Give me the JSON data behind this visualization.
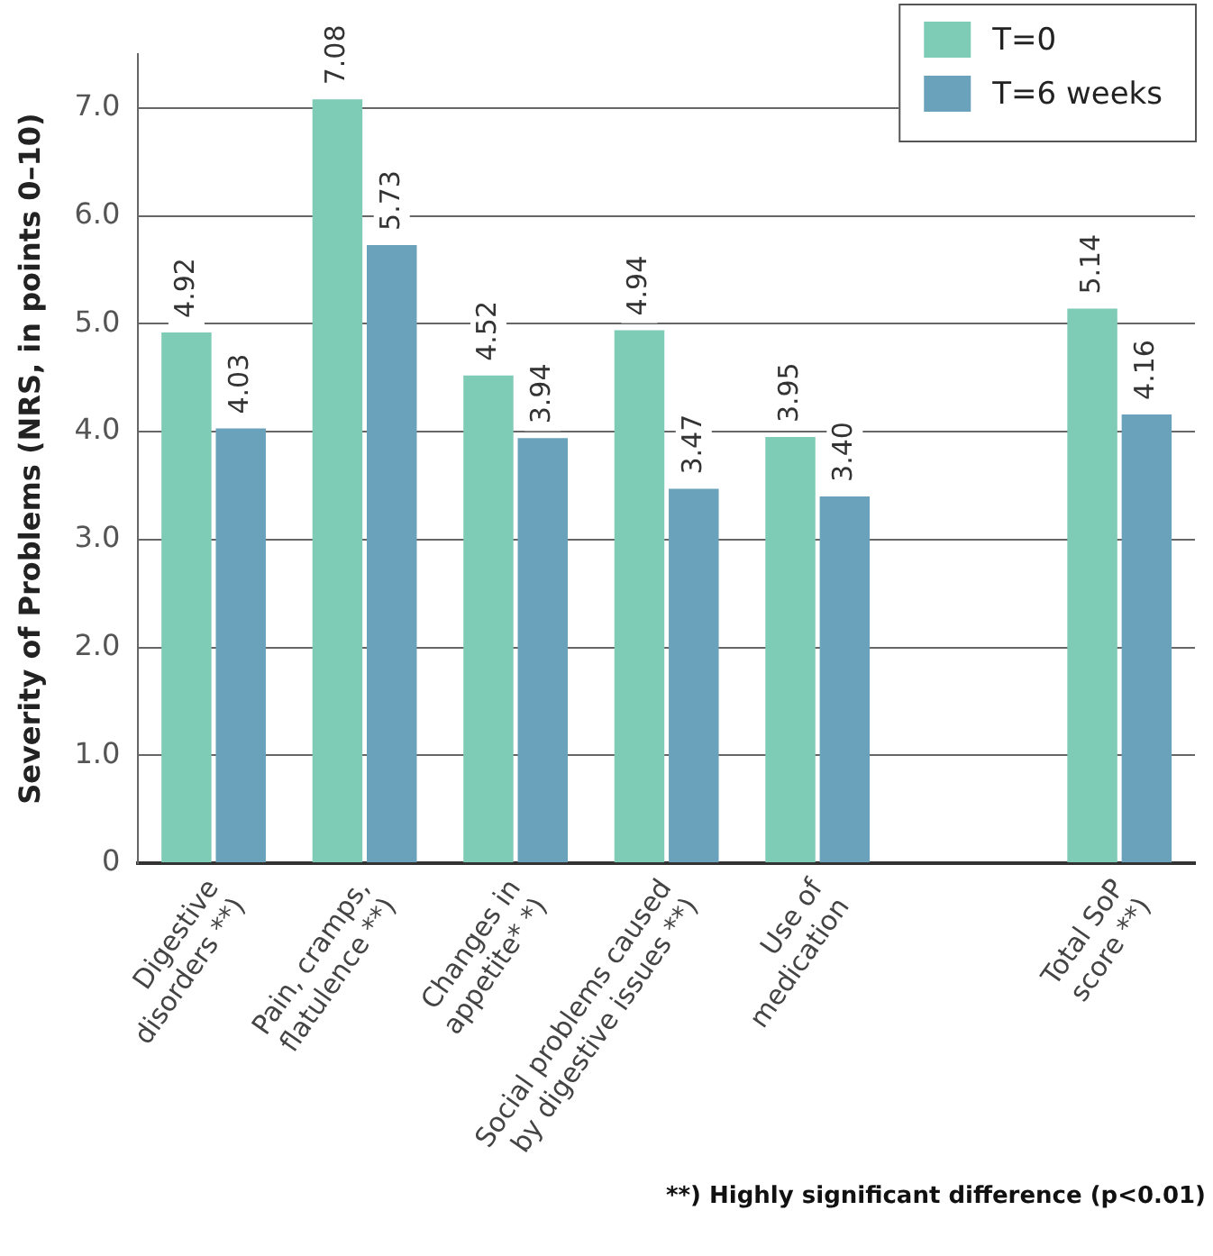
{
  "chart_data": {
    "type": "bar",
    "ylabel": "Severity of Problems (NRS, in points 0–10)",
    "categories": [
      "Digestive disorders **)",
      "Pain, cramps, flatulence **)",
      "Changes in appetite* *)",
      "Social problems caused by digestive issues **)",
      "Use of medication",
      null,
      "Total SoP score **)"
    ],
    "series": [
      {
        "name": "T=0",
        "color": "#7ecbb6",
        "values": [
          4.92,
          7.08,
          4.52,
          4.94,
          3.95,
          null,
          5.14
        ],
        "value_labels": [
          "4.92",
          "7.08",
          "4.52",
          "4.94",
          "3.95",
          null,
          "5.14"
        ]
      },
      {
        "name": "T=6 weeks",
        "color": "#6aa2bb",
        "values": [
          4.03,
          5.73,
          3.94,
          3.47,
          3.4,
          null,
          4.16
        ],
        "value_labels": [
          "4.03",
          "5.73",
          "3.94",
          "3.47",
          "3.40",
          null,
          "4.16"
        ]
      }
    ],
    "ylim": [
      0,
      7.5
    ],
    "yticks": [
      0,
      {
        "value": 1,
        "label": "1.0"
      },
      {
        "value": 2,
        "label": "2.0"
      },
      {
        "value": 3,
        "label": "3.0"
      },
      {
        "value": 4,
        "label": "4.0"
      },
      {
        "value": 5,
        "label": "5.0"
      },
      {
        "value": 6,
        "label": "6.0"
      },
      {
        "value": 7,
        "label": "7.0"
      }
    ],
    "grid": "y",
    "legend": "top right",
    "annotations": [
      "**) Highly significant difference (p<0.01)"
    ]
  }
}
